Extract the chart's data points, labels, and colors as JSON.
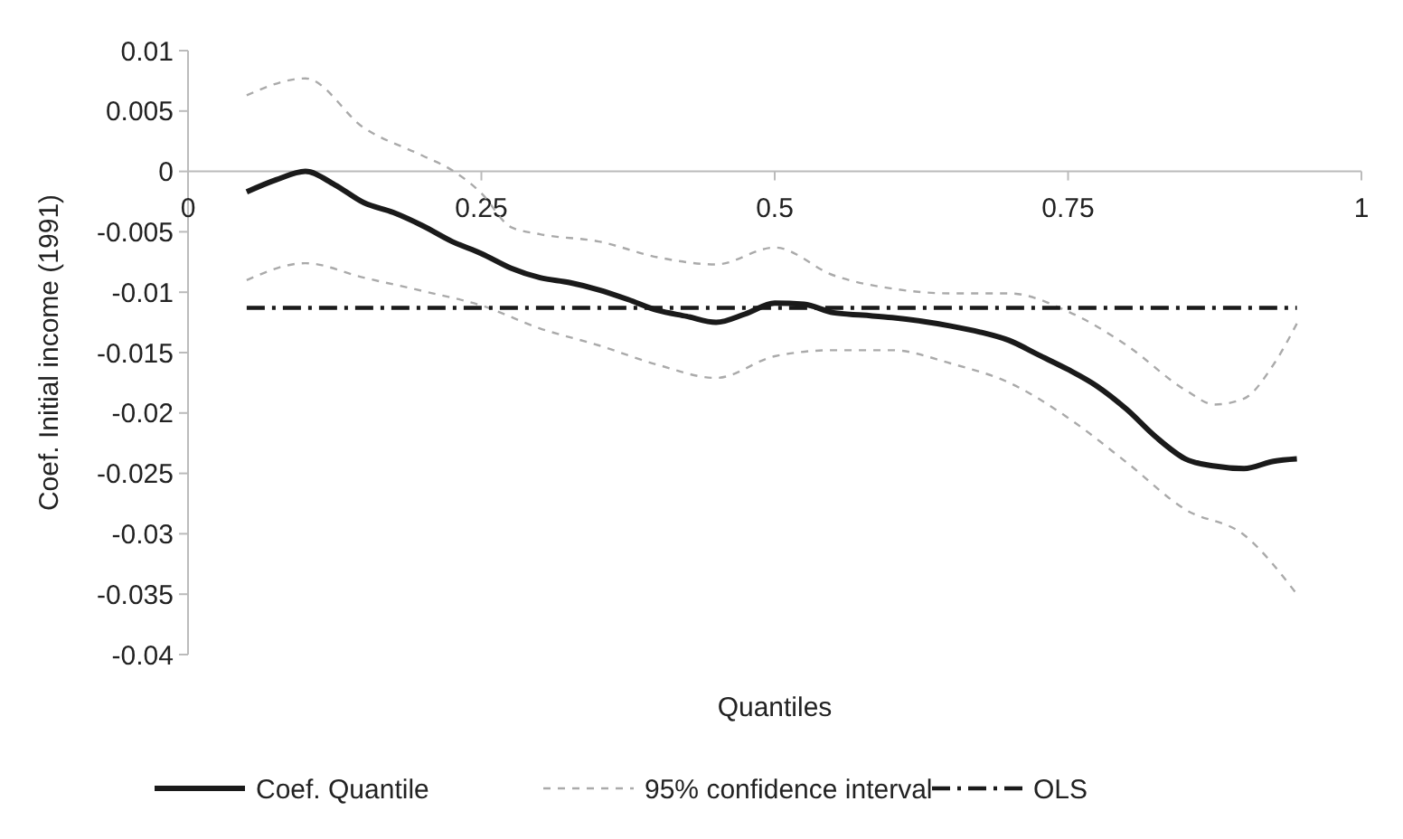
{
  "chart_data": {
    "type": "line",
    "xlabel": "Quantiles",
    "ylabel": "Coef. Initial income (1991)",
    "xlim": [
      0,
      1
    ],
    "xticks": [
      0,
      0.25,
      0.5,
      0.75,
      1
    ],
    "ylim": [
      -0.04,
      0.01
    ],
    "yticks": [
      {
        "value": 0.01,
        "label": "0.01"
      },
      {
        "value": 0.005,
        "label": "0.005"
      },
      0,
      {
        "value": -0.005,
        "label": "-0.005"
      },
      {
        "value": -0.01,
        "label": "-0.01"
      },
      {
        "value": -0.015,
        "label": "-0.015"
      },
      {
        "value": -0.02,
        "label": "-0.02"
      },
      {
        "value": -0.025,
        "label": "-0.025"
      },
      {
        "value": -0.03,
        "label": "-0.03"
      },
      {
        "value": -0.035,
        "label": "-0.035"
      },
      {
        "value": -0.04,
        "label": "-0.04"
      }
    ],
    "grid": false,
    "legend": "bottom",
    "marker": "none",
    "series": [
      {
        "name": "Coef. Quantile",
        "color": "#1a1a1a",
        "line_style": "solid",
        "x": [
          0.05,
          0.075,
          0.1,
          0.125,
          0.15,
          0.175,
          0.2,
          0.225,
          0.25,
          0.275,
          0.3,
          0.325,
          0.35,
          0.375,
          0.4,
          0.425,
          0.45,
          0.475,
          0.5,
          0.525,
          0.55,
          0.575,
          0.6,
          0.625,
          0.65,
          0.675,
          0.7,
          0.725,
          0.75,
          0.775,
          0.8,
          0.825,
          0.85,
          0.875,
          0.9,
          0.925,
          0.945
        ],
        "values": [
          -0.0017,
          -0.0007,
          0.0,
          -0.0011,
          -0.0026,
          -0.0034,
          -0.0045,
          -0.0058,
          -0.0068,
          -0.008,
          -0.0088,
          -0.0092,
          -0.0098,
          -0.0106,
          -0.0115,
          -0.012,
          -0.0125,
          -0.0118,
          -0.0109,
          -0.011,
          -0.0117,
          -0.0119,
          -0.0121,
          -0.0124,
          -0.0128,
          -0.0133,
          -0.014,
          -0.0152,
          -0.0164,
          -0.0178,
          -0.0197,
          -0.022,
          -0.0238,
          -0.0244,
          -0.0246,
          -0.024,
          -0.0238
        ]
      },
      {
        "name": "95% confidence interval",
        "color": "#aaaaaa",
        "line_style": "dotted",
        "x": [
          0.05,
          0.1,
          0.15,
          0.2,
          0.225,
          0.25,
          0.275,
          0.3,
          0.35,
          0.4,
          0.45,
          0.5,
          0.55,
          0.6,
          0.65,
          0.7,
          0.75,
          0.8,
          0.85,
          0.875,
          0.9,
          0.925,
          0.945
        ],
        "values": [
          0.0063,
          0.0077,
          0.0036,
          0.0013,
          0.0001,
          -0.0018,
          -0.0046,
          -0.0052,
          -0.0058,
          -0.0071,
          -0.0077,
          -0.0063,
          -0.0086,
          -0.0097,
          -0.0101,
          -0.0101,
          -0.0116,
          -0.0144,
          -0.0181,
          -0.0193,
          -0.0188,
          -0.016,
          -0.0126
        ]
      },
      {
        "color": "#aaaaaa",
        "line_style": "dotted",
        "x": [
          0.05,
          0.1,
          0.15,
          0.2,
          0.25,
          0.3,
          0.35,
          0.4,
          0.45,
          0.5,
          0.55,
          0.6,
          0.65,
          0.7,
          0.75,
          0.8,
          0.85,
          0.9,
          0.945
        ],
        "values": [
          -0.009,
          -0.0076,
          -0.0088,
          -0.0099,
          -0.0111,
          -0.013,
          -0.0144,
          -0.016,
          -0.0171,
          -0.0153,
          -0.0148,
          -0.0148,
          -0.0159,
          -0.0175,
          -0.0204,
          -0.0241,
          -0.028,
          -0.0301,
          -0.035
        ]
      },
      {
        "name": "OLS",
        "color": "#1a1a1a",
        "line_style": "dashed",
        "x": [
          0.05,
          0.945
        ],
        "values": [
          -0.0113,
          -0.0113
        ]
      }
    ]
  }
}
